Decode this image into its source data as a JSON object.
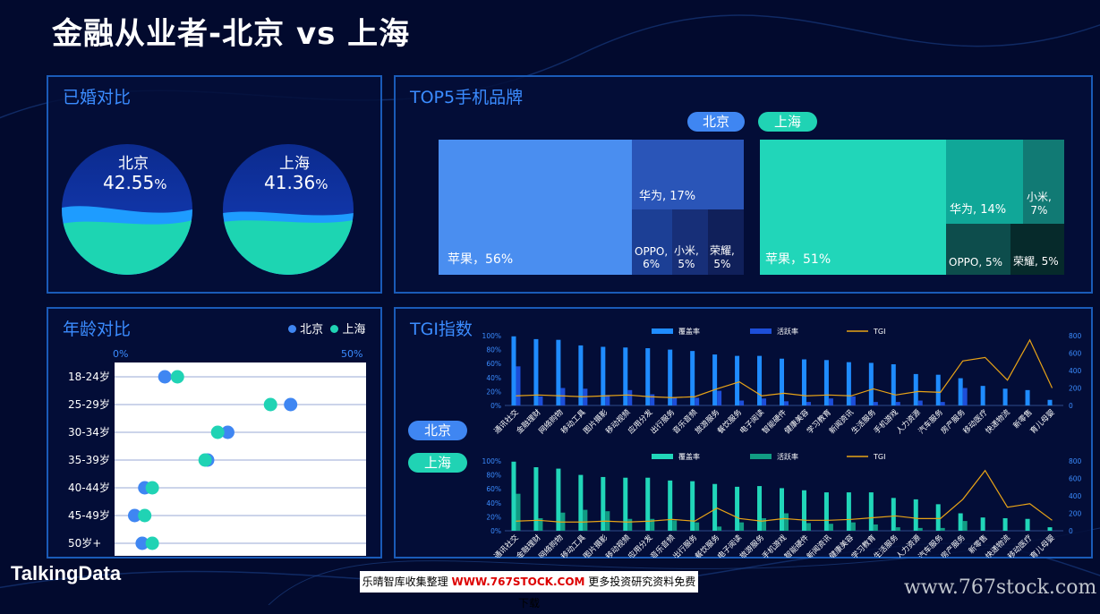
{
  "title": "金融从业者-北京 vs 上海",
  "marriage": {
    "title": "已婚对比",
    "beijing": {
      "city": "北京",
      "value": "42.55",
      "unit": "%"
    },
    "shanghai": {
      "city": "上海",
      "value": "41.36",
      "unit": "%"
    }
  },
  "phones": {
    "title": "TOP5手机品牌",
    "legend": {
      "beijing": "北京",
      "shanghai": "上海"
    },
    "beijing": [
      {
        "label": "苹果，56%"
      },
      {
        "label": "华为, 17%"
      },
      {
        "label": "OPPO,\n6%"
      },
      {
        "label": "小米,\n5%"
      },
      {
        "label": "荣耀,\n5%"
      }
    ],
    "shanghai": [
      {
        "label": "苹果，51%"
      },
      {
        "label": "华为, 14%"
      },
      {
        "label": "小米,\n7%"
      },
      {
        "label": "OPPO, 5%"
      },
      {
        "label": "荣耀, 5%"
      }
    ]
  },
  "age": {
    "title": "年龄对比",
    "legend": {
      "beijing": "北京",
      "shanghai": "上海"
    },
    "axis_min_label": "0%",
    "axis_max_label": "50%"
  },
  "tgi": {
    "title": "TGI指数",
    "beijing_label": "北京",
    "shanghai_label": "上海"
  },
  "brand": "TalkingData",
  "footer": {
    "left": "乐晴智库收集整理 ",
    "url": "WWW.767STOCK.COM",
    "right": " 更多投资研究资料免费下载"
  },
  "watermark": "www.767stock.com",
  "colors": {
    "beijing": "#3f86f2",
    "shanghai": "#20d3b4",
    "panel_border": "#1a5bb8"
  },
  "chart_data": [
    {
      "type": "scatter",
      "title": "年龄对比",
      "categories": [
        "18-24岁",
        "25-29岁",
        "30-34岁",
        "35-39岁",
        "40-44岁",
        "45-49岁",
        "50岁+"
      ],
      "xlim": [
        0,
        50
      ],
      "series": [
        {
          "name": "北京",
          "values": [
            10,
            35,
            22.5,
            18.5,
            6,
            4,
            5.5
          ]
        },
        {
          "name": "上海",
          "values": [
            12.5,
            31,
            20.5,
            18,
            7.5,
            6,
            7.5
          ]
        }
      ]
    },
    {
      "type": "bar",
      "title": "北京",
      "categories": [
        "通讯社交",
        "金融理财",
        "网络购物",
        "移动工具",
        "图片摄影",
        "移动视频",
        "应用分发",
        "出行服务",
        "音乐音频",
        "旅游服务",
        "餐饮服务",
        "电子阅读",
        "智能硬件",
        "健康美容",
        "学习教育",
        "新闻资讯",
        "生活服务",
        "手机游戏",
        "人力资源",
        "汽车服务",
        "房产服务",
        "移动医疗",
        "快递物流",
        "新零售",
        "育儿母婴"
      ],
      "ylim": [
        0,
        100
      ],
      "y2lim": [
        0,
        800
      ],
      "y_ticks": [
        "0%",
        "20%",
        "40%",
        "60%",
        "80%",
        "100%"
      ],
      "y2_ticks": [
        "0",
        "200",
        "400",
        "600",
        "800"
      ],
      "series": [
        {
          "name": "覆盖率",
          "values": [
            99,
            95,
            94,
            86,
            84,
            83,
            82,
            80,
            78,
            73,
            71,
            71,
            67,
            66,
            65,
            62,
            61,
            59,
            45,
            44,
            39,
            28,
            24,
            22,
            8
          ]
        },
        {
          "name": "活跃率",
          "values": [
            56,
            13,
            25,
            24,
            15,
            22,
            16,
            12,
            11,
            21,
            7,
            10,
            6,
            5,
            10,
            13,
            5,
            5,
            7,
            5,
            25,
            0,
            0,
            0,
            0
          ]
        },
        {
          "name": "TGI",
          "values": [
            110,
            120,
            110,
            100,
            110,
            120,
            100,
            90,
            100,
            190,
            270,
            110,
            140,
            110,
            120,
            110,
            190,
            120,
            160,
            150,
            510,
            550,
            290,
            750,
            200
          ]
        }
      ]
    },
    {
      "type": "bar",
      "title": "上海",
      "categories": [
        "通讯社交",
        "金融理财",
        "网络购物",
        "移动工具",
        "图片摄影",
        "移动视频",
        "应用分发",
        "音乐音频",
        "出行服务",
        "餐饮服务",
        "电子阅读",
        "旅游服务",
        "手机游戏",
        "智能硬件",
        "新闻资讯",
        "健康美容",
        "学习教育",
        "生活服务",
        "人力资源",
        "汽车服务",
        "房产服务",
        "新零售",
        "快递物流",
        "移动医疗",
        "育儿母婴"
      ],
      "ylim": [
        0,
        100
      ],
      "y2lim": [
        0,
        800
      ],
      "y_ticks": [
        "0%",
        "20%",
        "40%",
        "60%",
        "80%",
        "100%"
      ],
      "y2_ticks": [
        "0",
        "200",
        "400",
        "600",
        "800"
      ],
      "series": [
        {
          "name": "覆盖率",
          "values": [
            99,
            91,
            89,
            80,
            77,
            76,
            76,
            72,
            71,
            67,
            63,
            64,
            61,
            58,
            55,
            55,
            55,
            47,
            45,
            38,
            25,
            19,
            18,
            17,
            5
          ]
        },
        {
          "name": "活跃率",
          "values": [
            53,
            18,
            26,
            30,
            28,
            17,
            17,
            15,
            12,
            6,
            12,
            18,
            25,
            11,
            10,
            12,
            9,
            5,
            4,
            4,
            14,
            0,
            0,
            0,
            0
          ]
        },
        {
          "name": "TGI",
          "values": [
            110,
            120,
            100,
            100,
            110,
            100,
            110,
            130,
            110,
            260,
            140,
            110,
            140,
            120,
            120,
            130,
            150,
            170,
            140,
            140,
            360,
            690,
            270,
            310,
            120
          ]
        }
      ]
    }
  ]
}
